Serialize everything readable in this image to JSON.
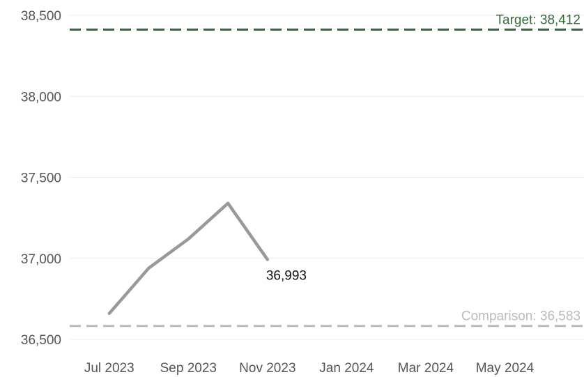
{
  "chart_data": {
    "type": "line",
    "y_ticks": [
      "38,500",
      "38,000",
      "37,500",
      "37,000",
      "36,500"
    ],
    "y_tick_values": [
      38500,
      38000,
      37500,
      37000,
      36500
    ],
    "x_ticks": [
      "Jul 2023",
      "Sep 2023",
      "Nov 2023",
      "Jan 2024",
      "Mar 2024",
      "May 2024"
    ],
    "x_tick_months": [
      "2023-07",
      "2023-09",
      "2023-11",
      "2024-01",
      "2024-03",
      "2024-05"
    ],
    "ylim": [
      36500,
      38500
    ],
    "xlim": [
      "2023-06",
      "2024-07"
    ],
    "grid": true,
    "series": [
      {
        "color": "#999999",
        "points": [
          {
            "x": "2023-07",
            "y": 36660
          },
          {
            "x": "2023-08",
            "y": 36940
          },
          {
            "x": "2023-09",
            "y": 37120
          },
          {
            "x": "2023-10",
            "y": 37340
          },
          {
            "x": "2023-11",
            "y": 36993
          }
        ]
      }
    ],
    "last_point_label": "36,993",
    "reference_lines": [
      {
        "label": "Target: 38,412",
        "value": 38412,
        "color": "#336b3a"
      },
      {
        "label": "Comparison: 36,583",
        "value": 36583,
        "color": "#bbbbbb"
      }
    ]
  }
}
